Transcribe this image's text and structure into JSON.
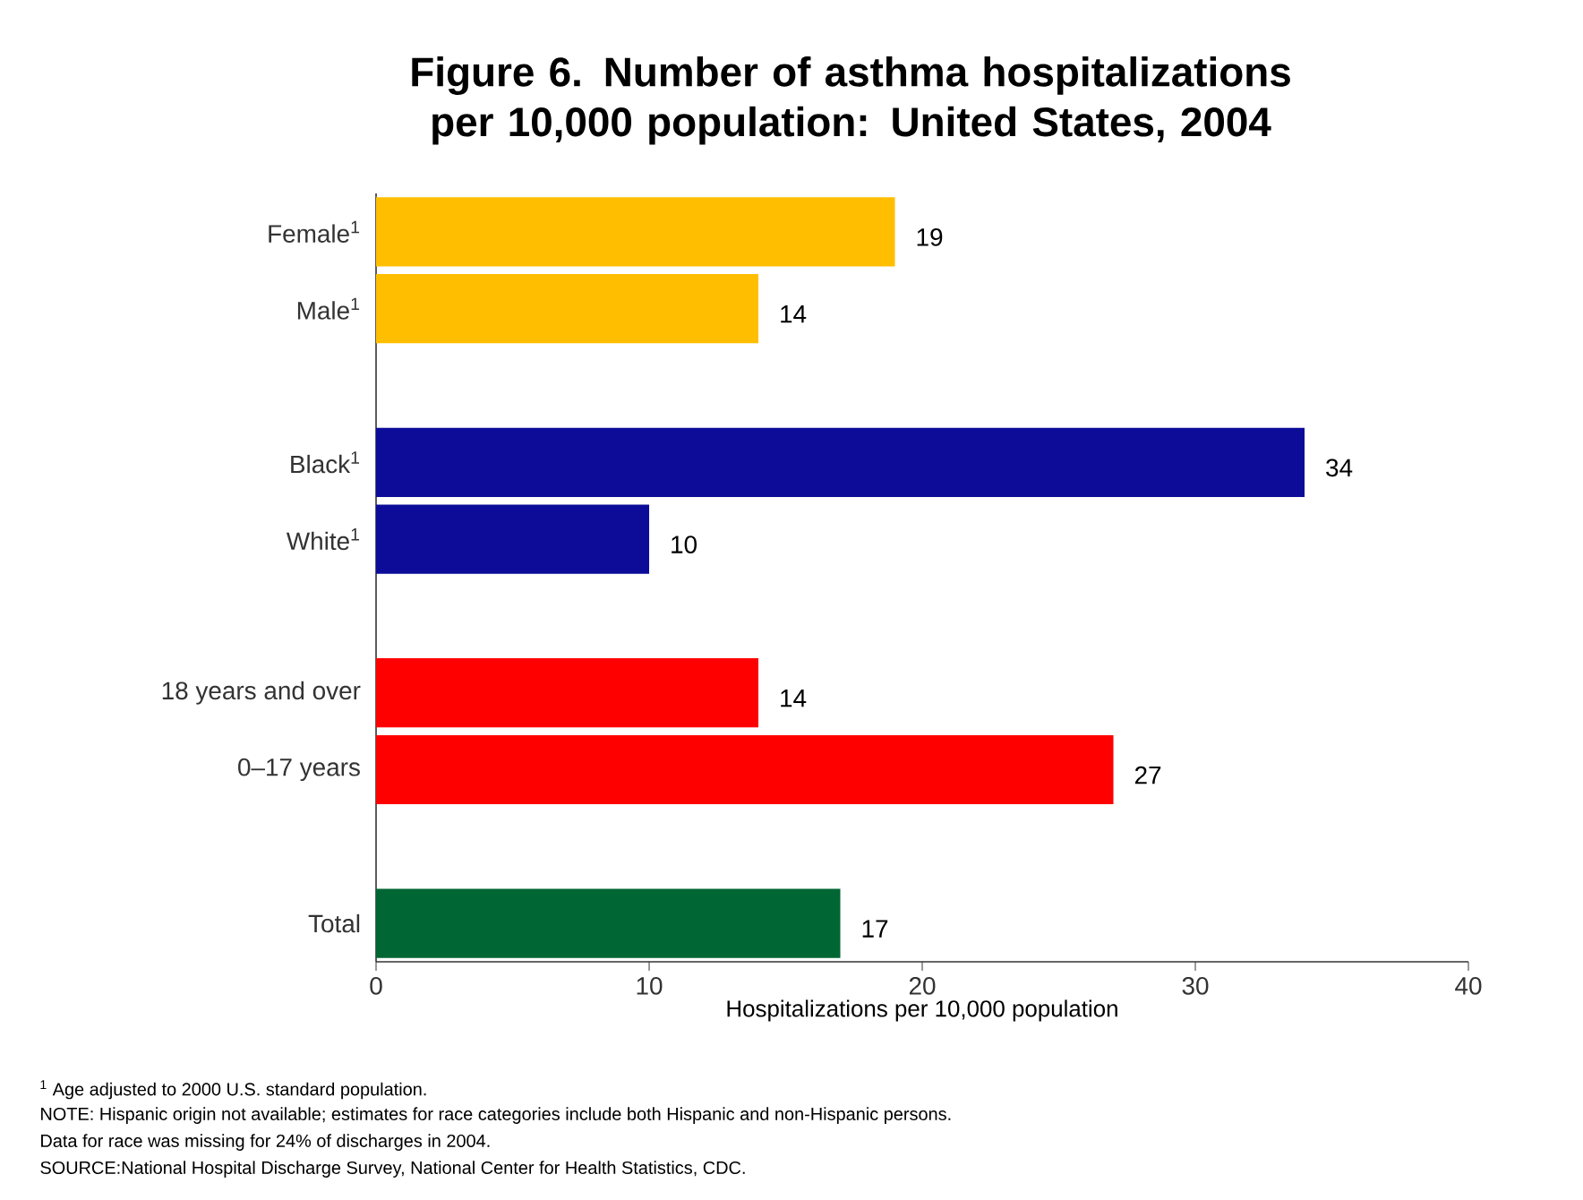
{
  "chart_data": {
    "type": "bar",
    "orientation": "horizontal",
    "title": "Figure 6. Number of asthma hospitalizations per 10,000 population: United States, 2004",
    "xlabel": "Hospitalizations  per 10,000 population",
    "categories": [
      "Female$^{1}$",
      "Male$^{1}$",
      null,
      "Black$^{1}$",
      "White$^{1}$",
      null,
      "18 years and over",
      "0–17 years",
      null,
      "Total"
    ],
    "values": [
      19,
      14,
      null,
      34,
      10,
      null,
      14,
      27,
      null,
      17
    ],
    "colors": [
      "#ffbf00",
      "#ffbf00",
      null,
      "#0c0c99",
      "#0c0c99",
      null,
      "#ff0000",
      "#ff0000",
      null,
      "#006633"
    ],
    "data_labels": true,
    "xlim": [
      0,
      40
    ],
    "xticks": [
      0,
      10,
      20,
      30,
      40
    ],
    "annotations": [
      "$^{1}$ Age adjusted to 2000 U.S. standard population.",
      "NOTE: Hispanic origin not available; estimates for race categories include both Hispanic and non-Hispanic persons.",
      "Data for race was missing for 24% of discharges in 2004.",
      "SOURCE:National Hospital Discharge Survey, National Center for Health Statistics, CDC."
    ]
  }
}
